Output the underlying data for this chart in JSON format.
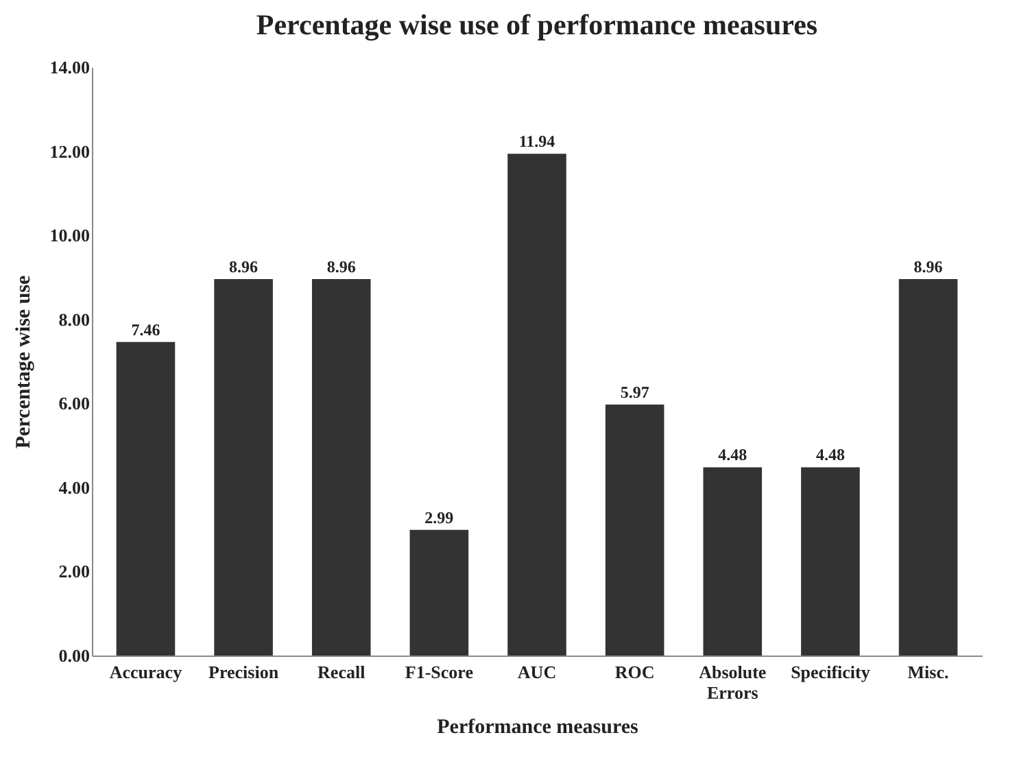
{
  "chart_data": {
    "type": "bar",
    "title": "Percentage wise use of performance measures",
    "xlabel": "Performance measures",
    "ylabel": "Percentage wise use",
    "categories": [
      "Accuracy",
      "Precision",
      "Recall",
      "F1-Score",
      "AUC",
      "ROC",
      "Absolute Errors",
      "Specificity",
      "Misc."
    ],
    "values": [
      7.46,
      8.96,
      8.96,
      2.99,
      11.94,
      5.97,
      4.48,
      4.48,
      8.96
    ],
    "color": "#333333",
    "ylim": [
      0,
      14
    ],
    "yticks": [
      {
        "value": 0,
        "label": "0.00"
      },
      {
        "value": 2,
        "label": "2.00"
      },
      {
        "value": 4,
        "label": "4.00"
      },
      {
        "value": 6,
        "label": "6.00"
      },
      {
        "value": 8,
        "label": "8.00"
      },
      {
        "value": 10,
        "label": "10.00"
      },
      {
        "value": 12,
        "label": "12.00"
      },
      {
        "value": 14,
        "label": "14.00"
      }
    ],
    "data_labels": true
  }
}
